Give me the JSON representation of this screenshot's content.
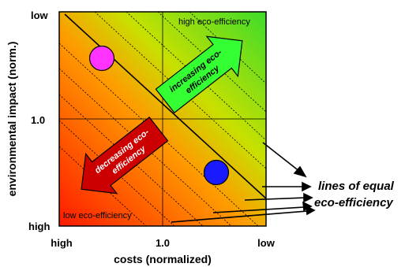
{
  "axes": {
    "ylabel": "environmental impact  (norm.)",
    "xlabel": "costs (normalized)",
    "y_ticks": [
      "low",
      "1.0",
      "high"
    ],
    "x_ticks": [
      "high",
      "1.0",
      "low"
    ]
  },
  "regions": {
    "high_label": "high eco-efficiency",
    "low_label": "low eco-efficiency"
  },
  "arrows": {
    "increasing": "increasing eco-efficiency",
    "increasing_line1": "increasing eco-",
    "increasing_line2": "efficiency",
    "decreasing": "decreasing eco-efficiency",
    "decreasing_line1": "decreasing eco-",
    "decreasing_line2": "efficiency"
  },
  "callout": {
    "line1": "lines of equal",
    "line2": "eco-efficiency"
  },
  "colors": {
    "gradient_low": "#ff1a00",
    "gradient_mid": "#ffd500",
    "gradient_high": "#3ddc2a",
    "increasing_arrow": "#33ff33",
    "decreasing_arrow": "#cc0000",
    "point_magenta": "#ff33ff",
    "point_blue": "#1a1aff"
  }
}
